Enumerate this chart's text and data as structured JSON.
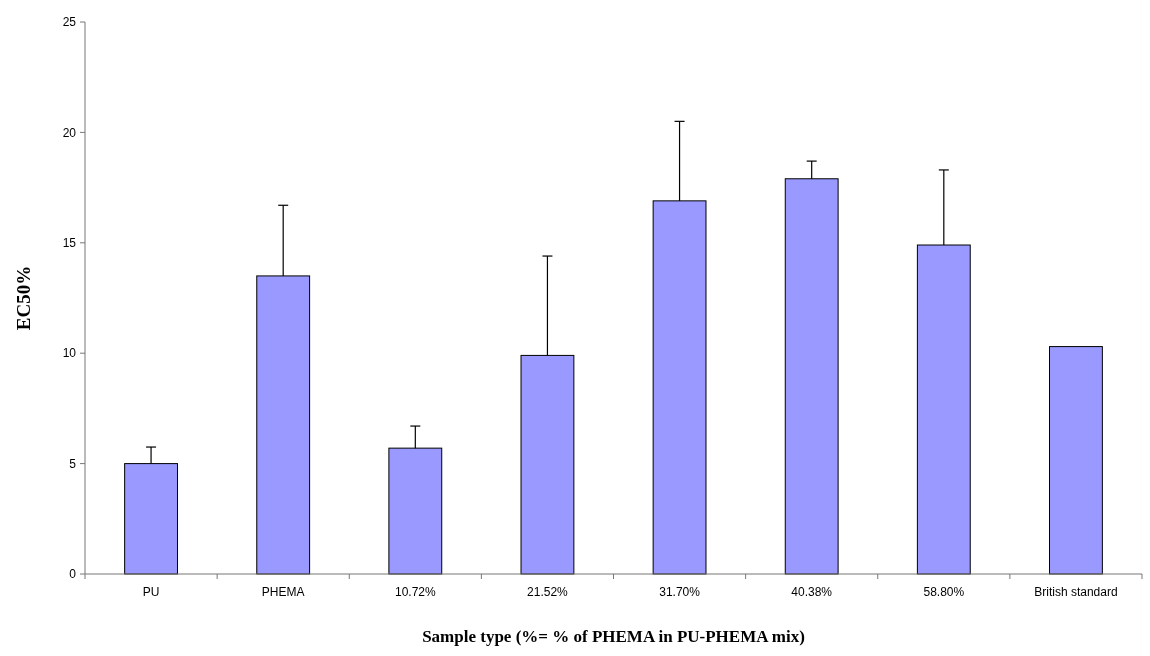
{
  "chart_data": {
    "type": "bar",
    "xlabel": "Sample type (%= % of PHEMA in PU-PHEMA mix)",
    "ylabel": "EC50%",
    "categories": [
      "PU",
      "PHEMA",
      "10.72%",
      "21.52%",
      "31.70%",
      "40.38%",
      "58.80%",
      "British standard"
    ],
    "values": [
      5.0,
      13.5,
      5.7,
      9.9,
      16.9,
      17.9,
      14.9,
      10.3
    ],
    "errors": [
      0.75,
      3.2,
      1.0,
      4.5,
      3.6,
      0.8,
      3.4,
      null
    ],
    "color": "#9999ff",
    "ylim": [
      0,
      25
    ],
    "yticks": [
      0,
      5,
      10,
      15,
      20,
      25
    ],
    "grid": false
  }
}
